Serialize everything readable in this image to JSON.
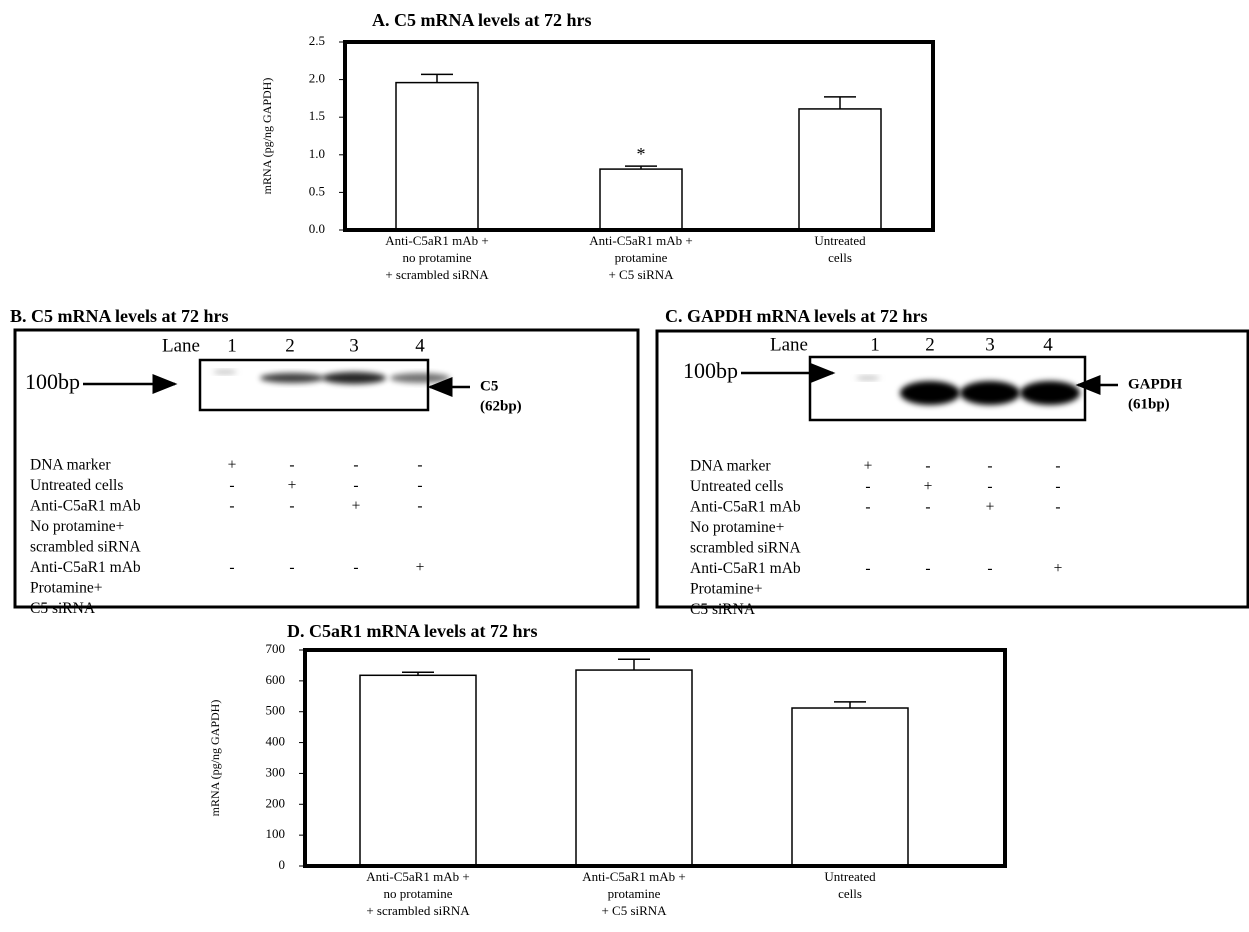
{
  "chart_data": [
    {
      "type": "bar",
      "title": "A. C5 mRNA levels  at 72 hrs",
      "ylabel": "mRNA (pg/ng GAPDH)",
      "categories": [
        [
          "Anti-C5aR1 mAb +",
          "no protamine",
          "+ scrambled siRNA"
        ],
        [
          "Anti-C5aR1 mAb +",
          "protamine",
          "+ C5 siRNA"
        ],
        [
          "Untreated",
          "cells"
        ]
      ],
      "values": [
        1.96,
        0.81,
        1.61
      ],
      "errors": [
        0.11,
        0.04,
        0.16
      ],
      "color": "#ffffff",
      "annotations": [
        {
          "category": 1,
          "text": "*"
        }
      ],
      "ylim": [
        0,
        2.5
      ],
      "yticks": [
        {
          "value": 0,
          "label": "0.0"
        },
        0.5,
        {
          "value": 1,
          "label": "1.0"
        },
        1.5,
        {
          "value": 2,
          "label": "2.0"
        },
        2.5
      ]
    },
    {
      "type": "bar",
      "title": "D. C5aR1 mRNA levels  at 72 hrs",
      "ylabel": "mRNA (pg/ng GAPDH)",
      "categories": [
        [
          "Anti-C5aR1 mAb +",
          "no protamine",
          "+ scrambled siRNA"
        ],
        [
          "Anti-C5aR1 mAb +",
          "protamine",
          "+ C5 siRNA"
        ],
        [
          "Untreated",
          "cells"
        ]
      ],
      "values": [
        618,
        635,
        512
      ],
      "errors": [
        10,
        35,
        20
      ],
      "color": "#ffffff",
      "ylim": [
        0,
        700
      ],
      "yticks": [
        0,
        100,
        200,
        300,
        400,
        500,
        600,
        700
      ]
    }
  ],
  "gels": [
    {
      "title": "B. C5 mRNA levels at 72 hrs",
      "lane_label": "Lane",
      "lanes": [
        "1",
        "2",
        "3",
        "4"
      ],
      "marker_label": "100bp",
      "band_label": [
        "C5",
        "(62bp)"
      ],
      "rows": [
        {
          "label": [
            "DNA marker"
          ],
          "signs": [
            "+",
            "-",
            "-",
            "-"
          ]
        },
        {
          "label": [
            "Untreated  cells"
          ],
          "signs": [
            "-",
            "+",
            "-",
            "-"
          ]
        },
        {
          "label": [
            "Anti-C5aR1 mAb",
            "No protamine+",
            "scrambled siRNA"
          ],
          "signs": [
            "-",
            "-",
            "+",
            "-"
          ]
        },
        {
          "label": [
            "Anti-C5aR1 mAb",
            "Protamine+",
            "C5 siRNA"
          ],
          "signs": [
            "-",
            "-",
            "-",
            "+"
          ]
        }
      ]
    },
    {
      "title": "C.  GAPDH mRNA levels  at 72 hrs",
      "lane_label": "Lane",
      "lanes": [
        "1",
        "2",
        "3",
        "4"
      ],
      "marker_label": "100bp",
      "band_label": [
        "GAPDH",
        "(61bp)"
      ],
      "rows": [
        {
          "label": [
            "DNA marker"
          ],
          "signs": [
            "+",
            "-",
            "-",
            "-"
          ]
        },
        {
          "label": [
            "Untreated cells"
          ],
          "signs": [
            "-",
            "+",
            "-",
            "-"
          ]
        },
        {
          "label": [
            "Anti-C5aR1 mAb",
            "No protamine+",
            "scrambled siRNA"
          ],
          "signs": [
            "-",
            "-",
            "+",
            "-"
          ]
        },
        {
          "label": [
            "Anti-C5aR1 mAb",
            "Protamine+",
            "C5 siRNA"
          ],
          "signs": [
            "-",
            "-",
            "-",
            "+"
          ]
        }
      ]
    }
  ]
}
